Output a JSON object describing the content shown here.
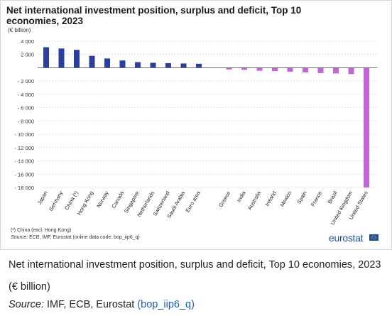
{
  "chart_data": {
    "type": "bar",
    "title": "Net international investment position, surplus and deficit, Top 10 economies, 2023",
    "ylabel": "(€ billion)",
    "xlabel": "",
    "ylim": [
      -18000,
      4000
    ],
    "yticks": [
      4000,
      2000,
      0,
      -2000,
      -4000,
      -6000,
      -8000,
      -10000,
      -12000,
      -14000,
      -16000,
      -18000
    ],
    "ytick_labels": [
      "4 000",
      "2 000",
      "",
      "- 2 000",
      "- 4 000",
      "- 6 000",
      "- 8 000",
      "- 10 000",
      "- 12 000",
      "- 14 000",
      "- 16 000",
      "- 18 000"
    ],
    "grid": true,
    "groups": [
      {
        "color": "#2a3f9e",
        "categories": [
          "Japan",
          "Germany",
          "China (¹)",
          "Hong Kong",
          "Norway",
          "Canada",
          "Singapore",
          "Netherlands",
          "Switzerland",
          "Saudi Arabia",
          "Euro area"
        ],
        "values": [
          3100,
          2900,
          2700,
          1800,
          1400,
          1100,
          850,
          750,
          700,
          650,
          600
        ]
      },
      {
        "color": "#c166d6",
        "categories": [
          "Greece",
          "India",
          "Australia",
          "Ireland",
          "Mexico",
          "Spain",
          "France",
          "Brazil",
          "United Kingdom",
          "United States"
        ],
        "values": [
          -250,
          -300,
          -450,
          -500,
          -600,
          -700,
          -800,
          -850,
          -950,
          -18000
        ]
      }
    ]
  },
  "figure": {
    "title": "Net international investment position, surplus and deficit, Top 10 economies, 2023",
    "unit": "(€ billion)",
    "footnote": "(¹) China (excl. Hong Kong)",
    "source_label": "Source:",
    "source_text": " ECB, IMF, Eurostat (online data code: bop_iip6_q)",
    "brand": "eurostat"
  },
  "page": {
    "caption": "Net international investment position, surplus and deficit, Top 10 economies, 2023 (€ billion)",
    "source_label": "Source:",
    "source_text": " IMF, ECB, Eurostat ",
    "source_link": "(bop_iip6_q)"
  }
}
